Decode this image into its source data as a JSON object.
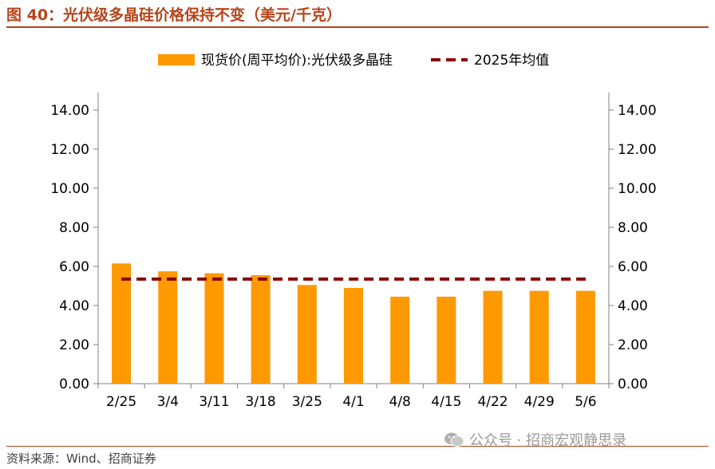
{
  "figure": {
    "title": "图 40：光伏级多晶硅价格保持不变（美元/千克）",
    "source": "资料来源：Wind、招商证券",
    "watermark": "公众号 · 招商宏观静思录",
    "watermark_icon": "wechat-icon"
  },
  "colors": {
    "accent": "#b5451b",
    "bar": "#ff9900",
    "avg_line": "#8b0000",
    "axis": "#808080"
  },
  "chart_data": {
    "type": "bar",
    "categories": [
      "2/25",
      "3/4",
      "3/11",
      "3/18",
      "3/25",
      "4/1",
      "4/8",
      "4/15",
      "4/22",
      "4/29",
      "5/6"
    ],
    "series": [
      {
        "name": "现货价(周平均价):光伏级多晶硅",
        "type": "bar",
        "values": [
          6.15,
          5.75,
          5.65,
          5.55,
          5.05,
          4.9,
          4.45,
          4.45,
          4.75,
          4.75,
          4.75
        ]
      },
      {
        "name": "2025年均值",
        "type": "line-dashed",
        "values": [
          5.35,
          5.35,
          5.35,
          5.35,
          5.35,
          5.35,
          5.35,
          5.35,
          5.35,
          5.35,
          5.35
        ]
      }
    ],
    "ylim": [
      0,
      14
    ],
    "yticks": [
      "0.00",
      "2.00",
      "4.00",
      "6.00",
      "8.00",
      "10.00",
      "12.00",
      "14.00"
    ],
    "y2ticks": [
      "0.00",
      "2.00",
      "4.00",
      "6.00",
      "8.00",
      "10.00",
      "12.00",
      "14.00"
    ],
    "legend": "top-center",
    "grid": false
  }
}
